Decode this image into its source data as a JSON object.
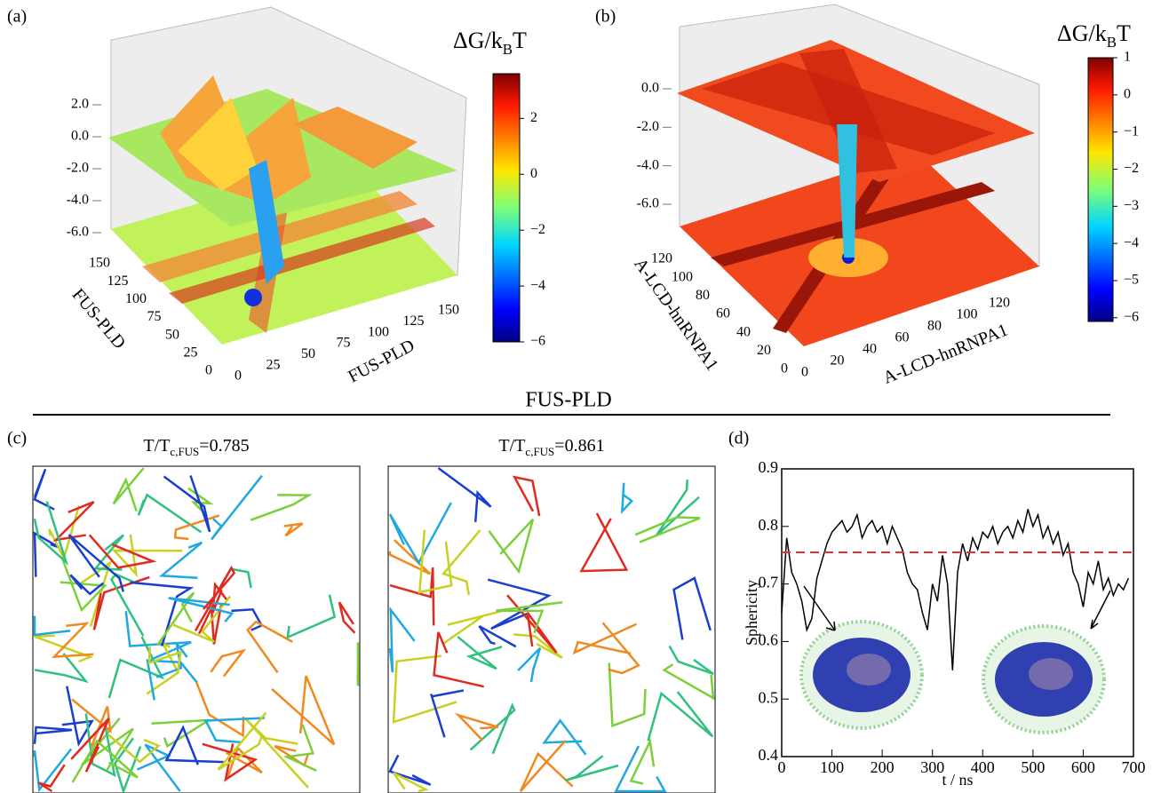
{
  "panels": [
    "(a)",
    "(b)",
    "(c)",
    "(d)"
  ],
  "section_title": "FUS-PLD",
  "chart_data": [
    {
      "type": "surface",
      "xlabel": "FUS-PLD",
      "ylabel": "FUS-PLD",
      "xlim": [
        0,
        150
      ],
      "xticks": [
        0,
        25,
        50,
        75,
        100,
        125,
        150
      ],
      "ylim": [
        0,
        150
      ],
      "yticks": [
        0,
        25,
        50,
        75,
        100,
        125,
        150
      ],
      "zlim": [
        -6,
        2
      ],
      "zticks": [
        {
          "value": 2,
          "label": "2.0"
        },
        {
          "value": 0,
          "label": "0.0"
        },
        {
          "value": -2,
          "label": "-2.0"
        },
        {
          "value": -4,
          "label": "-4.0"
        },
        {
          "value": -6,
          "label": "-6.0"
        }
      ],
      "colorbar": {
        "label": {
          "main": "ΔG/k",
          "sub": "B",
          "end": "T"
        },
        "lim": [
          -6,
          3.6
        ],
        "ticks": [
          2,
          0,
          {
            "value": -2,
            "label": "−2"
          },
          {
            "value": -4,
            "label": "−4"
          },
          {
            "value": -6,
            "label": "−6"
          }
        ]
      }
    },
    {
      "type": "surface",
      "xlabel": "A-LCD-hnRNPA1",
      "ylabel": "A-LCD-hnRNPA1",
      "xlim": [
        0,
        120
      ],
      "xticks": [
        0,
        20,
        40,
        60,
        80,
        100,
        120
      ],
      "ylim": [
        0,
        120
      ],
      "yticks": [
        0,
        20,
        40,
        60,
        80,
        100,
        120
      ],
      "zlim": [
        -6,
        0
      ],
      "zticks": [
        {
          "value": 0,
          "label": "0.0"
        },
        {
          "value": -2,
          "label": "-2.0"
        },
        {
          "value": -4,
          "label": "-4.0"
        },
        {
          "value": -6,
          "label": "-6.0"
        }
      ],
      "colorbar": {
        "label": {
          "main": "ΔG/k",
          "sub": "B",
          "end": "T"
        },
        "lim": [
          -6.1,
          1
        ],
        "ticks": [
          1,
          0,
          {
            "value": -1,
            "label": "−1"
          },
          {
            "value": -2,
            "label": "−2"
          },
          {
            "value": -3,
            "label": "−3"
          },
          {
            "value": -4,
            "label": "−4"
          },
          {
            "value": -5,
            "label": "−5"
          },
          {
            "value": -6,
            "label": "−6"
          }
        ]
      }
    },
    {
      "type": "image",
      "title": {
        "main": "T/T",
        "sub": "c,FUS",
        "end": "=0.785"
      }
    },
    {
      "type": "image",
      "title": {
        "main": "T/T",
        "sub": "c,FUS",
        "end": "=0.861"
      }
    },
    {
      "type": "line",
      "xlabel": "t / ns",
      "ylabel": "Sphericity",
      "xlim": [
        0,
        700
      ],
      "xticks": [
        0,
        100,
        200,
        300,
        400,
        500,
        600,
        700
      ],
      "ylim": [
        0.4,
        0.9
      ],
      "yticks": [
        0.4,
        0.5,
        0.6,
        0.7,
        0.8,
        0.9
      ],
      "reference_line": {
        "y": 0.755,
        "color": "#e8312a"
      },
      "x": [
        0,
        10,
        20,
        30,
        40,
        50,
        60,
        70,
        80,
        90,
        100,
        110,
        120,
        130,
        140,
        150,
        160,
        170,
        180,
        190,
        200,
        210,
        220,
        230,
        240,
        250,
        260,
        270,
        280,
        290,
        300,
        310,
        320,
        330,
        340,
        350,
        360,
        370,
        380,
        390,
        400,
        410,
        420,
        430,
        440,
        450,
        460,
        470,
        480,
        490,
        500,
        510,
        520,
        530,
        540,
        550,
        560,
        570,
        580,
        590,
        600,
        610,
        620,
        630,
        640,
        650,
        660,
        670,
        680,
        690
      ],
      "series": [
        {
          "color": "#000000",
          "values": [
            0.65,
            0.78,
            0.72,
            0.7,
            0.67,
            0.62,
            0.64,
            0.71,
            0.74,
            0.77,
            0.79,
            0.8,
            0.81,
            0.79,
            0.8,
            0.82,
            0.78,
            0.8,
            0.81,
            0.79,
            0.8,
            0.77,
            0.8,
            0.78,
            0.76,
            0.72,
            0.7,
            0.69,
            0.65,
            0.62,
            0.7,
            0.67,
            0.75,
            0.7,
            0.55,
            0.72,
            0.77,
            0.74,
            0.78,
            0.76,
            0.79,
            0.78,
            0.8,
            0.77,
            0.79,
            0.8,
            0.78,
            0.81,
            0.79,
            0.83,
            0.8,
            0.82,
            0.78,
            0.8,
            0.77,
            0.79,
            0.75,
            0.77,
            0.72,
            0.7,
            0.66,
            0.72,
            0.7,
            0.74,
            0.69,
            0.71,
            0.68,
            0.7,
            0.69,
            0.71
          ]
        }
      ]
    }
  ]
}
